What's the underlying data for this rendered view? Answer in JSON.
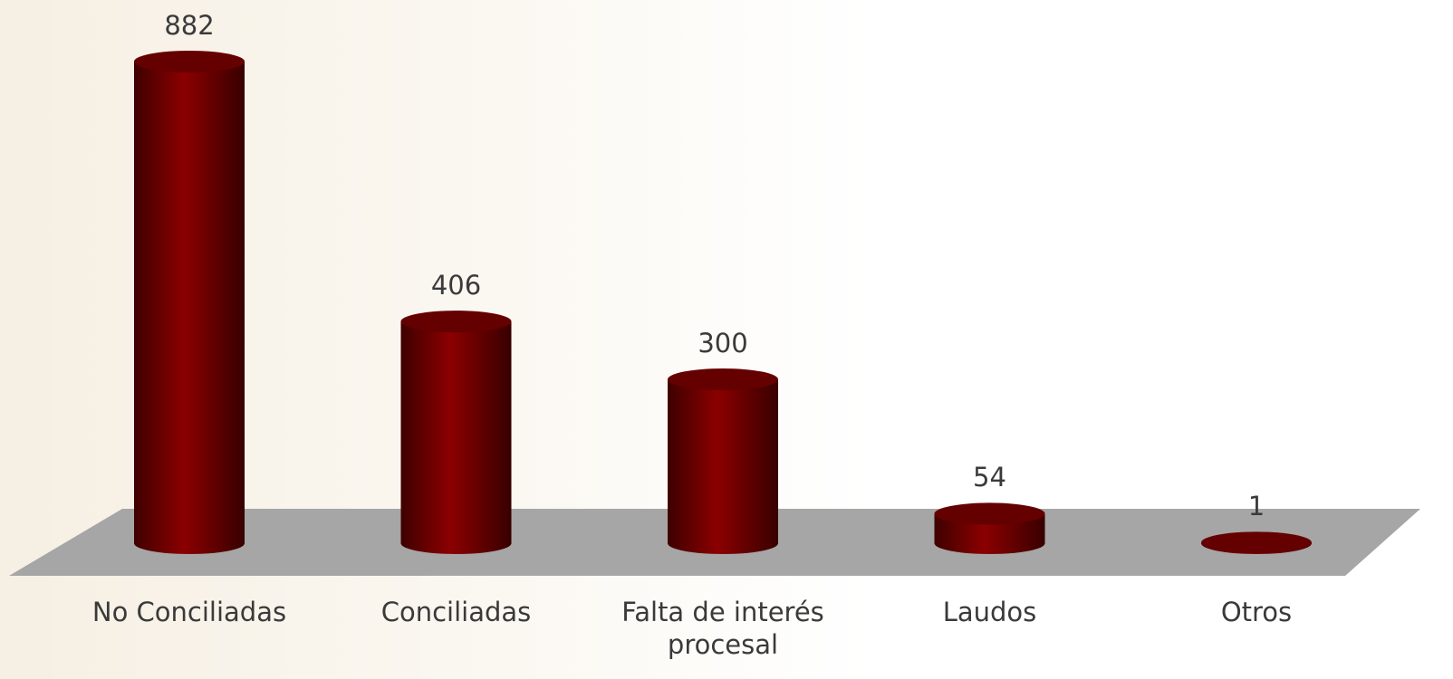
{
  "chart_data": {
    "type": "bar3d",
    "categories": [
      "No Conciliadas",
      "Conciliadas",
      "Falta de interés procesal",
      "Laudos",
      "Otros"
    ],
    "values": [
      882,
      406,
      300,
      54,
      1
    ],
    "color": "#8b0000"
  }
}
